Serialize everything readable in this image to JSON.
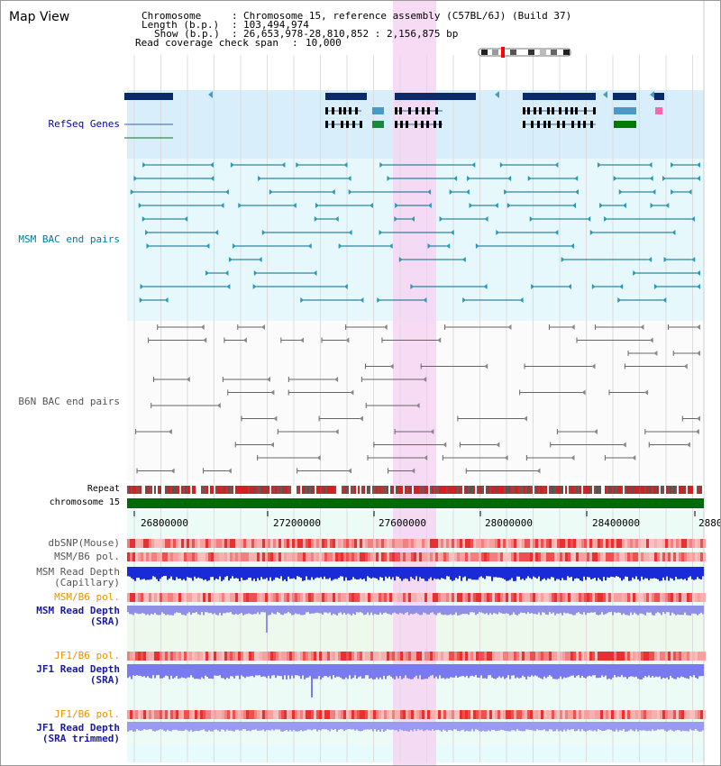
{
  "panel": {
    "title": "Map View"
  },
  "header": {
    "chromosome_key": "Chromosome",
    "chromosome_val": "Chromosome 15, reference assembly (C57BL/6J) (Build 37)",
    "length_key": "Length (b.p.)",
    "length_val": "103,494,974",
    "show_key": "Show (b.p.)",
    "show_val": "26,653,978-28,810,852 : 2,156,875 bp",
    "span_key": "Read coverage check span",
    "span_val": "10,000"
  },
  "tracks": {
    "refseq": "RefSeq Genes",
    "msm_bac": "MSM BAC end pairs",
    "b6n_bac": "B6N BAC end pairs",
    "repeat": "Repeat",
    "chromosome": "chromosome 15",
    "dbsnp": "dbSNP(Mouse)",
    "msm_b6_pol_1": "MSM/B6 pol.",
    "msm_depth_cap_1": "MSM Read Depth",
    "msm_depth_cap_2": "(Capillary)",
    "msm_b6_pol_2": "MSM/B6 pol.",
    "msm_depth_sra_1": "MSM Read Depth",
    "msm_depth_sra_2": "(SRA)",
    "jf1_b6_pol_1": "JF1/B6 pol.",
    "jf1_depth_sra_1": "JF1 Read Depth",
    "jf1_depth_sra_2": "(SRA)",
    "jf1_b6_pol_2": "JF1/B6 pol.",
    "jf1_depth_trim_1": "JF1 Read Depth",
    "jf1_depth_trim_2": "(SRA trimmed)"
  },
  "axis": {
    "ticks": [
      "26800000",
      "27200000",
      "27600000",
      "28000000",
      "28400000",
      "2880"
    ]
  },
  "colors": {
    "refseq_blue": "#0000c0",
    "msm_teal": "#007a9a",
    "b6n_gray": "#555555",
    "orange": "#e69400",
    "navy": "#1a1aa0",
    "highlight": "#f6d5f2"
  }
}
